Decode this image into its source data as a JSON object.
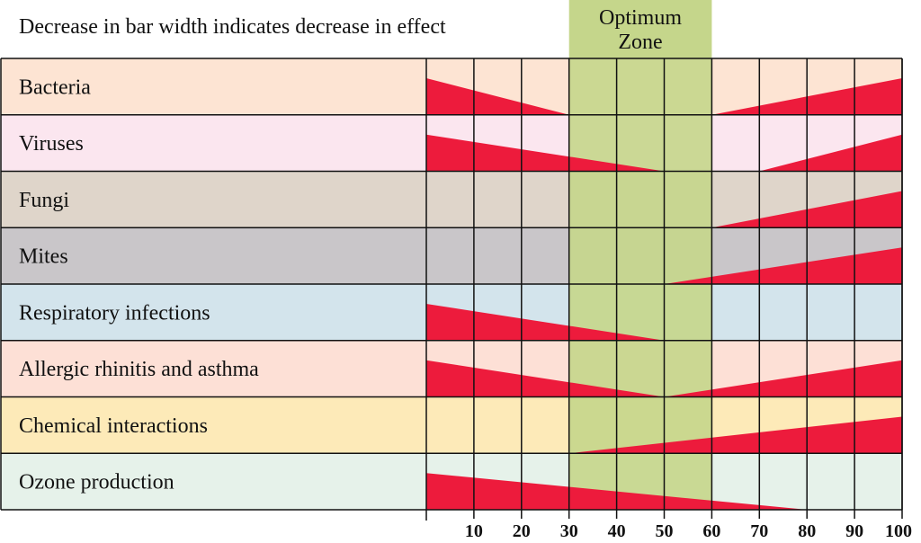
{
  "chart_data": {
    "type": "bar",
    "title": "Decrease in bar width indicates decrease in effect",
    "zone_label_line1": "Optimum",
    "zone_label_line2": "Zone",
    "optimum_zone": [
      30,
      60
    ],
    "xlim": [
      0,
      100
    ],
    "x_ticks": [
      "10",
      "20",
      "30",
      "40",
      "50",
      "60",
      "70",
      "80",
      "90",
      "100"
    ],
    "grid": true,
    "colors": {
      "effect": "#ed1b3c",
      "zone": "#c5d68b"
    },
    "rows": [
      {
        "label": "Bacteria",
        "color": "#fde4d3",
        "segments": [
          {
            "from": 0,
            "to": 30,
            "direction": "decreasing"
          },
          {
            "from": 60,
            "to": 100,
            "direction": "increasing"
          }
        ]
      },
      {
        "label": "Viruses",
        "color": "#fbe6ef",
        "segments": [
          {
            "from": 0,
            "to": 50,
            "direction": "decreasing"
          },
          {
            "from": 70,
            "to": 100,
            "direction": "increasing"
          }
        ]
      },
      {
        "label": "Fungi",
        "color": "#dfd5ca",
        "segments": [
          {
            "from": 60,
            "to": 100,
            "direction": "increasing"
          }
        ]
      },
      {
        "label": "Mites",
        "color": "#c9c6c9",
        "segments": [
          {
            "from": 50,
            "to": 100,
            "direction": "increasing"
          }
        ]
      },
      {
        "label": "Respiratory infections",
        "color": "#d3e4ec",
        "segments": [
          {
            "from": 0,
            "to": 50,
            "direction": "decreasing"
          }
        ]
      },
      {
        "label": "Allergic rhinitis and asthma",
        "color": "#fde0d6",
        "segments": [
          {
            "from": 0,
            "to": 50,
            "direction": "decreasing"
          },
          {
            "from": 50,
            "to": 100,
            "direction": "increasing"
          }
        ]
      },
      {
        "label": "Chemical interactions",
        "color": "#fdeab8",
        "segments": [
          {
            "from": 30,
            "to": 100,
            "direction": "increasing"
          }
        ]
      },
      {
        "label": "Ozone production",
        "color": "#e6f2ea",
        "segments": [
          {
            "from": 0,
            "to": 80,
            "direction": "decreasing"
          }
        ]
      }
    ]
  }
}
